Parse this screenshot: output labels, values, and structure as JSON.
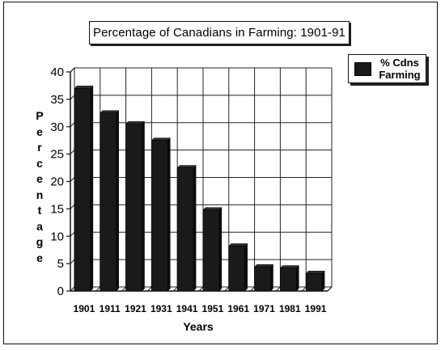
{
  "chart_data": {
    "type": "bar",
    "title": "Percentage of Canadians in Farming:  1901-91",
    "xlabel": "Years",
    "ylabel": "Percentage",
    "categories": [
      "1901",
      "1911",
      "1921",
      "1931",
      "1941",
      "1951",
      "1961",
      "1971",
      "1981",
      "1991"
    ],
    "series": [
      {
        "name": "% Cdns Farming",
        "values": [
          37,
          32.5,
          30.5,
          27.5,
          22.5,
          14.8,
          8.2,
          4.4,
          4.2,
          3.2
        ]
      }
    ],
    "ylim": [
      0,
      40
    ],
    "yticks": [
      "0",
      "5",
      "10",
      "15",
      "20",
      "25",
      "30",
      "35",
      "40"
    ],
    "grid": true,
    "legend": "top-right",
    "bar_color": "#1a1a1a"
  },
  "legend_label_line1": "% Cdns",
  "legend_label_line2": "Farming",
  "ylabel_letters": [
    "P",
    "e",
    "r",
    "c",
    "e",
    "n",
    "t",
    "a",
    "g",
    "e"
  ]
}
